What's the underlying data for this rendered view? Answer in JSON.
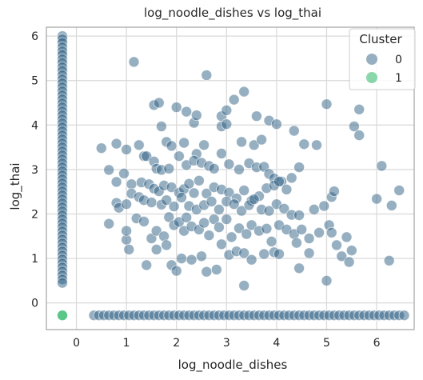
{
  "chart_data": {
    "type": "scatter",
    "title": "log_noodle_dishes vs log_thai",
    "xlabel": "log_noodle_dishes",
    "ylabel": "log_thai",
    "xlim": [
      -0.6,
      6.75
    ],
    "ylim": [
      -0.6,
      6.2
    ],
    "xticks": [
      "0",
      "1",
      "2",
      "3",
      "4",
      "5",
      "6"
    ],
    "yticks": [
      "0",
      "1",
      "2",
      "3",
      "4",
      "5",
      "6"
    ],
    "grid": true,
    "legend": {
      "title": "Cluster",
      "position": "top-right"
    },
    "series": [
      {
        "name": "0",
        "color": "#2e5f84",
        "points": [
          [
            -0.28,
            6.0
          ],
          [
            -0.28,
            5.93
          ],
          [
            -0.28,
            5.85
          ],
          [
            -0.28,
            5.75
          ],
          [
            -0.28,
            5.66
          ],
          [
            -0.28,
            5.58
          ],
          [
            -0.28,
            5.48
          ],
          [
            -0.28,
            5.4
          ],
          [
            -0.28,
            5.3
          ],
          [
            -0.28,
            5.22
          ],
          [
            -0.28,
            5.12
          ],
          [
            -0.28,
            5.03
          ],
          [
            -0.28,
            4.94
          ],
          [
            -0.28,
            4.85
          ],
          [
            -0.28,
            4.76
          ],
          [
            -0.28,
            4.67
          ],
          [
            -0.28,
            4.58
          ],
          [
            -0.28,
            4.49
          ],
          [
            -0.28,
            4.4
          ],
          [
            -0.28,
            4.31
          ],
          [
            -0.28,
            4.22
          ],
          [
            -0.28,
            4.13
          ],
          [
            -0.28,
            4.04
          ],
          [
            -0.28,
            3.95
          ],
          [
            -0.28,
            3.86
          ],
          [
            -0.28,
            3.77
          ],
          [
            -0.28,
            3.68
          ],
          [
            -0.28,
            3.59
          ],
          [
            -0.28,
            3.5
          ],
          [
            -0.28,
            3.41
          ],
          [
            -0.28,
            3.32
          ],
          [
            -0.28,
            3.23
          ],
          [
            -0.28,
            3.14
          ],
          [
            -0.28,
            3.05
          ],
          [
            -0.28,
            2.96
          ],
          [
            -0.28,
            2.87
          ],
          [
            -0.28,
            2.78
          ],
          [
            -0.28,
            2.69
          ],
          [
            -0.28,
            2.6
          ],
          [
            -0.28,
            2.51
          ],
          [
            -0.28,
            2.42
          ],
          [
            -0.28,
            2.33
          ],
          [
            -0.28,
            2.24
          ],
          [
            -0.28,
            2.15
          ],
          [
            -0.28,
            2.06
          ],
          [
            -0.28,
            1.97
          ],
          [
            -0.28,
            1.88
          ],
          [
            -0.28,
            1.79
          ],
          [
            -0.28,
            1.7
          ],
          [
            -0.28,
            1.61
          ],
          [
            -0.28,
            1.52
          ],
          [
            -0.28,
            1.43
          ],
          [
            -0.28,
            1.34
          ],
          [
            -0.28,
            1.25
          ],
          [
            -0.28,
            1.16
          ],
          [
            -0.28,
            1.07
          ],
          [
            -0.28,
            0.98
          ],
          [
            -0.28,
            0.89
          ],
          [
            -0.28,
            0.8
          ],
          [
            -0.28,
            0.71
          ],
          [
            -0.28,
            0.62
          ],
          [
            -0.28,
            0.53
          ],
          [
            -0.28,
            0.45
          ],
          [
            0.35,
            -0.28
          ],
          [
            0.45,
            -0.28
          ],
          [
            0.55,
            -0.28
          ],
          [
            0.65,
            -0.28
          ],
          [
            0.75,
            -0.28
          ],
          [
            0.85,
            -0.28
          ],
          [
            0.95,
            -0.28
          ],
          [
            1.05,
            -0.28
          ],
          [
            1.15,
            -0.28
          ],
          [
            1.25,
            -0.28
          ],
          [
            1.35,
            -0.28
          ],
          [
            1.45,
            -0.28
          ],
          [
            1.55,
            -0.28
          ],
          [
            1.65,
            -0.28
          ],
          [
            1.75,
            -0.28
          ],
          [
            1.85,
            -0.28
          ],
          [
            1.95,
            -0.28
          ],
          [
            2.05,
            -0.28
          ],
          [
            2.15,
            -0.28
          ],
          [
            2.25,
            -0.28
          ],
          [
            2.35,
            -0.28
          ],
          [
            2.45,
            -0.28
          ],
          [
            2.55,
            -0.28
          ],
          [
            2.65,
            -0.28
          ],
          [
            2.75,
            -0.28
          ],
          [
            2.85,
            -0.28
          ],
          [
            2.95,
            -0.28
          ],
          [
            3.05,
            -0.28
          ],
          [
            3.15,
            -0.28
          ],
          [
            3.25,
            -0.28
          ],
          [
            3.35,
            -0.28
          ],
          [
            3.45,
            -0.28
          ],
          [
            3.55,
            -0.28
          ],
          [
            3.65,
            -0.28
          ],
          [
            3.75,
            -0.28
          ],
          [
            3.85,
            -0.28
          ],
          [
            3.95,
            -0.28
          ],
          [
            4.05,
            -0.28
          ],
          [
            4.15,
            -0.28
          ],
          [
            4.25,
            -0.28
          ],
          [
            4.35,
            -0.28
          ],
          [
            4.45,
            -0.28
          ],
          [
            4.55,
            -0.28
          ],
          [
            4.65,
            -0.28
          ],
          [
            4.75,
            -0.28
          ],
          [
            4.85,
            -0.28
          ],
          [
            4.95,
            -0.28
          ],
          [
            5.05,
            -0.28
          ],
          [
            5.15,
            -0.28
          ],
          [
            5.25,
            -0.28
          ],
          [
            5.35,
            -0.28
          ],
          [
            5.45,
            -0.28
          ],
          [
            5.55,
            -0.28
          ],
          [
            5.65,
            -0.28
          ],
          [
            5.75,
            -0.28
          ],
          [
            5.85,
            -0.28
          ],
          [
            5.95,
            -0.28
          ],
          [
            6.05,
            -0.28
          ],
          [
            6.15,
            -0.28
          ],
          [
            6.25,
            -0.28
          ],
          [
            6.35,
            -0.28
          ],
          [
            6.45,
            -0.28
          ],
          [
            6.55,
            -0.28
          ],
          [
            1.15,
            5.42
          ],
          [
            2.6,
            5.12
          ],
          [
            3.35,
            4.75
          ],
          [
            3.15,
            4.57
          ],
          [
            5.0,
            4.47
          ],
          [
            1.55,
            4.45
          ],
          [
            1.65,
            4.5
          ],
          [
            2.0,
            4.4
          ],
          [
            2.9,
            4.2
          ],
          [
            3.0,
            4.33
          ],
          [
            2.2,
            4.3
          ],
          [
            2.35,
            4.05
          ],
          [
            2.4,
            4.22
          ],
          [
            1.7,
            3.97
          ],
          [
            2.9,
            3.97
          ],
          [
            3.0,
            4.02
          ],
          [
            3.6,
            4.2
          ],
          [
            3.85,
            4.1
          ],
          [
            4.0,
            4.02
          ],
          [
            4.35,
            3.87
          ],
          [
            5.65,
            4.35
          ],
          [
            5.55,
            3.97
          ],
          [
            5.65,
            3.77
          ],
          [
            0.5,
            3.48
          ],
          [
            0.8,
            3.58
          ],
          [
            1.0,
            3.45
          ],
          [
            1.25,
            3.55
          ],
          [
            1.8,
            3.62
          ],
          [
            1.9,
            3.53
          ],
          [
            2.15,
            3.6
          ],
          [
            2.4,
            3.35
          ],
          [
            2.55,
            3.55
          ],
          [
            3.3,
            3.62
          ],
          [
            3.55,
            3.55
          ],
          [
            3.7,
            3.67
          ],
          [
            4.55,
            3.57
          ],
          [
            4.8,
            3.55
          ],
          [
            1.35,
            3.3
          ],
          [
            1.4,
            3.3
          ],
          [
            1.55,
            3.18
          ],
          [
            1.6,
            3.02
          ],
          [
            1.7,
            2.99
          ],
          [
            1.85,
            3.02
          ],
          [
            2.05,
            3.3
          ],
          [
            2.2,
            3.1
          ],
          [
            2.35,
            3.2
          ],
          [
            2.5,
            3.15
          ],
          [
            2.65,
            3.08
          ],
          [
            2.75,
            3.02
          ],
          [
            2.9,
            3.36
          ],
          [
            3.05,
            3.12
          ],
          [
            3.25,
            3.0
          ],
          [
            3.45,
            3.14
          ],
          [
            3.6,
            3.05
          ],
          [
            3.75,
            3.06
          ],
          [
            3.85,
            2.9
          ],
          [
            3.95,
            2.8
          ],
          [
            4.1,
            2.73
          ],
          [
            4.3,
            2.81
          ],
          [
            4.45,
            3.05
          ],
          [
            0.65,
            2.99
          ],
          [
            0.8,
            2.72
          ],
          [
            0.95,
            2.91
          ],
          [
            1.1,
            2.67
          ],
          [
            1.3,
            2.71
          ],
          [
            1.45,
            2.67
          ],
          [
            1.55,
            2.57
          ],
          [
            1.65,
            2.51
          ],
          [
            1.75,
            2.64
          ],
          [
            1.9,
            2.6
          ],
          [
            2.05,
            2.48
          ],
          [
            2.15,
            2.56
          ],
          [
            2.25,
            2.68
          ],
          [
            2.35,
            2.47
          ],
          [
            2.45,
            2.75
          ],
          [
            2.6,
            2.46
          ],
          [
            2.75,
            2.6
          ],
          [
            2.9,
            2.55
          ],
          [
            3.05,
            2.48
          ],
          [
            3.2,
            2.35
          ],
          [
            3.35,
            2.53
          ],
          [
            3.5,
            2.3
          ],
          [
            3.65,
            2.4
          ],
          [
            3.8,
            2.58
          ],
          [
            3.95,
            2.64
          ],
          [
            4.05,
            2.73
          ],
          [
            4.2,
            2.55
          ],
          [
            0.8,
            2.25
          ],
          [
            0.85,
            2.14
          ],
          [
            1.0,
            2.22
          ],
          [
            1.1,
            2.46
          ],
          [
            1.25,
            2.38
          ],
          [
            1.35,
            2.31
          ],
          [
            1.5,
            2.26
          ],
          [
            1.7,
            2.21
          ],
          [
            1.8,
            2.31
          ],
          [
            1.95,
            2.17
          ],
          [
            2.1,
            2.37
          ],
          [
            2.25,
            2.18
          ],
          [
            2.4,
            2.1
          ],
          [
            2.55,
            2.2
          ],
          [
            2.7,
            2.28
          ],
          [
            2.85,
            2.1
          ],
          [
            3.0,
            2.28
          ],
          [
            3.15,
            2.22
          ],
          [
            3.3,
            2.07
          ],
          [
            3.45,
            2.2
          ],
          [
            3.55,
            2.33
          ],
          [
            3.7,
            2.1
          ],
          [
            3.85,
            2.07
          ],
          [
            4.0,
            2.22
          ],
          [
            4.15,
            2.12
          ],
          [
            4.3,
            1.98
          ],
          [
            4.45,
            1.97
          ],
          [
            4.75,
            2.1
          ],
          [
            4.95,
            2.18
          ],
          [
            5.1,
            2.38
          ],
          [
            5.15,
            2.51
          ],
          [
            6.0,
            2.34
          ],
          [
            6.3,
            2.19
          ],
          [
            6.45,
            2.53
          ],
          [
            6.1,
            3.08
          ],
          [
            0.65,
            1.78
          ],
          [
            1.0,
            1.42
          ],
          [
            1.05,
            1.2
          ],
          [
            1.2,
            1.9
          ],
          [
            1.35,
            1.83
          ],
          [
            1.5,
            1.45
          ],
          [
            1.6,
            1.62
          ],
          [
            1.75,
            1.5
          ],
          [
            1.85,
            1.93
          ],
          [
            1.95,
            1.75
          ],
          [
            2.05,
            1.82
          ],
          [
            2.15,
            1.62
          ],
          [
            2.2,
            1.92
          ],
          [
            2.3,
            1.72
          ],
          [
            2.45,
            1.65
          ],
          [
            2.55,
            1.8
          ],
          [
            2.65,
            1.52
          ],
          [
            2.75,
            1.88
          ],
          [
            2.85,
            1.7
          ],
          [
            3.0,
            1.88
          ],
          [
            3.1,
            1.48
          ],
          [
            3.25,
            1.68
          ],
          [
            3.4,
            1.55
          ],
          [
            3.5,
            1.75
          ],
          [
            3.65,
            1.62
          ],
          [
            3.8,
            1.67
          ],
          [
            3.9,
            1.38
          ],
          [
            4.05,
            1.75
          ],
          [
            4.2,
            1.65
          ],
          [
            4.35,
            1.55
          ],
          [
            4.5,
            1.65
          ],
          [
            4.65,
            1.45
          ],
          [
            4.85,
            1.58
          ],
          [
            5.05,
            1.75
          ],
          [
            5.1,
            1.58
          ],
          [
            5.2,
            1.3
          ],
          [
            5.4,
            1.48
          ],
          [
            1.0,
            1.62
          ],
          [
            1.6,
            1.2
          ],
          [
            1.8,
            1.3
          ],
          [
            1.9,
            0.85
          ],
          [
            2.0,
            0.72
          ],
          [
            2.1,
            1.0
          ],
          [
            2.3,
            0.97
          ],
          [
            2.5,
            1.05
          ],
          [
            2.6,
            0.7
          ],
          [
            2.8,
            0.75
          ],
          [
            2.9,
            1.32
          ],
          [
            3.05,
            1.08
          ],
          [
            3.2,
            1.16
          ],
          [
            3.35,
            1.12
          ],
          [
            3.5,
            0.97
          ],
          [
            3.75,
            1.1
          ],
          [
            3.95,
            1.14
          ],
          [
            4.05,
            1.1
          ],
          [
            4.4,
            1.35
          ],
          [
            4.45,
            0.78
          ],
          [
            4.65,
            1.12
          ],
          [
            5.0,
            0.5
          ],
          [
            5.3,
            1.05
          ],
          [
            5.45,
            0.92
          ],
          [
            5.5,
            1.18
          ],
          [
            6.25,
            0.95
          ],
          [
            3.35,
            0.39
          ],
          [
            1.4,
            0.85
          ]
        ]
      },
      {
        "name": "1",
        "color": "#3dbd74",
        "points": [
          [
            -0.28,
            -0.28
          ]
        ]
      }
    ]
  }
}
